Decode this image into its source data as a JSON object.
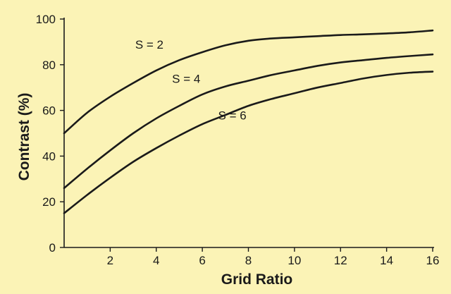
{
  "chart_data": {
    "type": "line",
    "xlabel": "Grid Ratio",
    "ylabel": "Contrast (%)",
    "xlim": [
      0,
      16
    ],
    "ylim": [
      0,
      100
    ],
    "xticks": [
      2,
      4,
      6,
      8,
      10,
      12,
      14,
      16
    ],
    "yticks": [
      0,
      20,
      40,
      60,
      80,
      100
    ],
    "grid": false,
    "legend": "none",
    "line_color": "#1a1a1a",
    "background_color": "#fbf3b6",
    "series": [
      {
        "name": "S = 2",
        "x": [
          0,
          1,
          2,
          3,
          4,
          5,
          6,
          7,
          8,
          9,
          10,
          11,
          12,
          13,
          14,
          15,
          16
        ],
        "values": [
          50,
          59,
          66,
          72,
          77.5,
          82,
          85.5,
          88.5,
          90.5,
          91.5,
          92,
          92.5,
          93,
          93.3,
          93.7,
          94.2,
          95
        ]
      },
      {
        "name": "S = 4",
        "x": [
          0,
          1,
          2,
          3,
          4,
          5,
          6,
          7,
          8,
          9,
          10,
          11,
          12,
          13,
          14,
          15,
          16
        ],
        "values": [
          26,
          34.5,
          42.5,
          50,
          56.5,
          62,
          67,
          70.5,
          73,
          75.5,
          77.5,
          79.5,
          81,
          82,
          83,
          83.8,
          84.5
        ]
      },
      {
        "name": "S = 6",
        "x": [
          0,
          1,
          2,
          3,
          4,
          5,
          6,
          7,
          8,
          9,
          10,
          11,
          12,
          13,
          14,
          15,
          16
        ],
        "values": [
          15,
          23,
          30.5,
          37.5,
          43.5,
          49,
          54,
          58,
          62,
          65,
          67.5,
          70,
          72,
          74,
          75.5,
          76.5,
          77
        ]
      }
    ]
  }
}
